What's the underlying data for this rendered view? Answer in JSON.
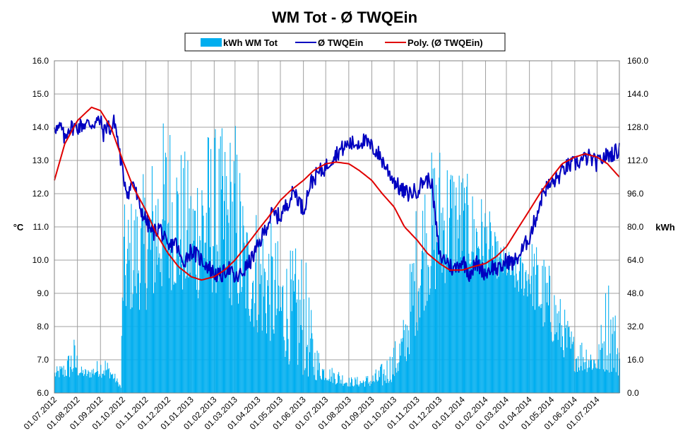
{
  "chart_data": {
    "type": "bar+line",
    "title": "WM Tot - Ø TWQEin",
    "y_left_label": "°C",
    "y_right_label": "kWh",
    "y_left_range": [
      6.0,
      16.0
    ],
    "y_right_range": [
      0.0,
      160.0
    ],
    "y_left_ticks": [
      "6.0",
      "7.0",
      "8.0",
      "9.0",
      "10.0",
      "11.0",
      "12.0",
      "13.0",
      "14.0",
      "15.0",
      "16.0"
    ],
    "y_right_ticks": [
      "0.0",
      "16.0",
      "32.0",
      "48.0",
      "64.0",
      "80.0",
      "96.0",
      "112.0",
      "128.0",
      "144.0",
      "160.0"
    ],
    "x_range": [
      "2012-07-01",
      "2014-07-31"
    ],
    "x_tick_labels": [
      "01.07.2012",
      "01.08.2012",
      "01.09.2012",
      "01.10.2012",
      "01.11.2012",
      "01.12.2012",
      "01.01.2013",
      "01.02.2013",
      "01.03.2013",
      "01.04.2013",
      "01.05.2013",
      "01.06.2013",
      "01.07.2013",
      "01.08.2013",
      "01.09.2013",
      "01.10.2013",
      "01.11.2013",
      "01.12.2013",
      "01.01.2014",
      "01.02.2014",
      "01.03.2014",
      "01.04.2014",
      "01.05.2014",
      "01.06.2014",
      "01.07.2014"
    ],
    "grid": true,
    "legend_position": "top-center",
    "series": [
      {
        "name": "kWh WM Tot",
        "kind": "bar",
        "axis": "right",
        "color": "#00aeef",
        "envelope_dates": [
          "2012-07-01",
          "2012-07-15",
          "2012-07-27",
          "2012-08-05",
          "2012-08-15",
          "2012-08-27",
          "2012-09-05",
          "2012-09-15",
          "2012-09-28",
          "2012-10-01",
          "2012-10-15",
          "2012-11-01",
          "2012-11-15",
          "2012-12-01",
          "2012-12-15",
          "2013-01-01",
          "2013-01-15",
          "2013-02-01",
          "2013-02-15",
          "2013-03-01",
          "2013-03-15",
          "2013-04-01",
          "2013-04-15",
          "2013-05-01",
          "2013-05-15",
          "2013-06-01",
          "2013-06-15",
          "2013-07-01",
          "2013-07-15",
          "2013-08-01",
          "2013-08-15",
          "2013-09-01",
          "2013-09-15",
          "2013-10-01",
          "2013-10-15",
          "2013-11-01",
          "2013-11-15",
          "2013-12-01",
          "2013-12-15",
          "2014-01-01",
          "2014-01-15",
          "2014-02-01",
          "2014-02-15",
          "2014-03-01",
          "2014-03-15",
          "2014-04-01",
          "2014-04-15",
          "2014-05-01",
          "2014-05-15",
          "2014-06-01",
          "2014-06-15",
          "2014-07-01",
          "2014-07-15",
          "2014-07-31"
        ],
        "envelope_peak": [
          12,
          16,
          28,
          13,
          12,
          16,
          20,
          13,
          4,
          90,
          98,
          108,
          125,
          140,
          125,
          110,
          132,
          130,
          128,
          135,
          90,
          95,
          85,
          72,
          70,
          73,
          28,
          13,
          13,
          8,
          8,
          10,
          15,
          25,
          40,
          100,
          115,
          125,
          120,
          110,
          100,
          95,
          75,
          70,
          65,
          76,
          72,
          60,
          44,
          28,
          28,
          20,
          62,
          30
        ],
        "envelope_base": [
          7,
          7,
          7,
          8,
          7,
          8,
          7,
          7,
          2,
          35,
          40,
          40,
          45,
          50,
          48,
          45,
          45,
          48,
          45,
          40,
          35,
          28,
          25,
          20,
          12,
          8,
          6,
          6,
          4,
          3,
          3,
          3,
          3,
          6,
          12,
          30,
          45,
          50,
          55,
          60,
          58,
          58,
          55,
          55,
          48,
          45,
          32,
          24,
          18,
          10,
          10,
          10,
          10,
          8
        ]
      },
      {
        "name": "Ø TWQEin",
        "kind": "line",
        "axis": "left",
        "color": "#0000c0",
        "dates": [
          "2012-07-01",
          "2012-07-05",
          "2012-07-10",
          "2012-07-15",
          "2012-07-20",
          "2012-07-25",
          "2012-08-01",
          "2012-08-10",
          "2012-08-20",
          "2012-09-01",
          "2012-09-05",
          "2012-09-10",
          "2012-09-15",
          "2012-09-20",
          "2012-09-25",
          "2012-10-01",
          "2012-10-08",
          "2012-10-15",
          "2012-10-22",
          "2012-11-01",
          "2012-11-10",
          "2012-11-20",
          "2012-12-01",
          "2012-12-10",
          "2012-12-20",
          "2013-01-01",
          "2013-01-10",
          "2013-01-20",
          "2013-02-01",
          "2013-02-10",
          "2013-02-20",
          "2013-03-01",
          "2013-03-10",
          "2013-03-20",
          "2013-04-01",
          "2013-04-10",
          "2013-04-20",
          "2013-05-01",
          "2013-05-10",
          "2013-05-20",
          "2013-06-01",
          "2013-06-10",
          "2013-06-20",
          "2013-07-01",
          "2013-07-10",
          "2013-07-20",
          "2013-08-01",
          "2013-08-10",
          "2013-08-20",
          "2013-09-01",
          "2013-09-10",
          "2013-09-20",
          "2013-10-01",
          "2013-10-10",
          "2013-10-20",
          "2013-11-01",
          "2013-11-10",
          "2013-11-20",
          "2013-12-01",
          "2013-12-10",
          "2013-12-20",
          "2014-01-01",
          "2014-01-10",
          "2014-01-20",
          "2014-02-01",
          "2014-02-10",
          "2014-02-20",
          "2014-03-01",
          "2014-03-10",
          "2014-03-20",
          "2014-04-01",
          "2014-04-10",
          "2014-04-20",
          "2014-05-01",
          "2014-05-10",
          "2014-05-20",
          "2014-06-01",
          "2014-06-10",
          "2014-06-20",
          "2014-07-01",
          "2014-07-10",
          "2014-07-20",
          "2014-07-31"
        ],
        "values": [
          14.1,
          13.9,
          14.0,
          13.6,
          14.0,
          14.0,
          14.0,
          14.1,
          14.1,
          14.2,
          13.8,
          14.1,
          13.9,
          14.2,
          13.5,
          12.6,
          12.0,
          12.4,
          11.7,
          11.2,
          10.8,
          11.0,
          10.3,
          10.6,
          9.9,
          10.3,
          10.1,
          9.9,
          9.6,
          9.5,
          9.8,
          9.4,
          9.6,
          9.9,
          10.4,
          10.9,
          11.4,
          11.3,
          11.7,
          12.1,
          11.5,
          12.3,
          12.6,
          12.8,
          13.1,
          13.3,
          13.5,
          13.5,
          13.6,
          13.4,
          13.2,
          12.8,
          12.4,
          12.1,
          12.0,
          12.1,
          12.4,
          12.4,
          10.1,
          10.0,
          9.7,
          10.0,
          9.6,
          9.9,
          9.6,
          9.8,
          9.7,
          10.0,
          9.9,
          10.2,
          10.7,
          11.3,
          12.1,
          12.3,
          12.5,
          12.8,
          12.9,
          13.0,
          13.1,
          12.9,
          13.1,
          13.2,
          13.3
        ]
      },
      {
        "name": "Poly. (Ø TWQEin)",
        "kind": "line",
        "axis": "left",
        "color": "#e00000",
        "dates": [
          "2012-07-01",
          "2012-07-15",
          "2012-08-01",
          "2012-08-20",
          "2012-09-01",
          "2012-09-15",
          "2012-10-01",
          "2012-10-15",
          "2012-11-01",
          "2012-11-15",
          "2012-12-01",
          "2012-12-15",
          "2013-01-01",
          "2013-01-15",
          "2013-02-01",
          "2013-02-15",
          "2013-03-01",
          "2013-03-15",
          "2013-04-01",
          "2013-04-15",
          "2013-05-01",
          "2013-05-15",
          "2013-06-01",
          "2013-06-15",
          "2013-07-01",
          "2013-07-15",
          "2013-08-01",
          "2013-08-15",
          "2013-09-01",
          "2013-09-15",
          "2013-10-01",
          "2013-10-15",
          "2013-11-01",
          "2013-11-15",
          "2013-12-01",
          "2013-12-15",
          "2014-01-01",
          "2014-01-15",
          "2014-02-01",
          "2014-02-15",
          "2014-03-01",
          "2014-03-15",
          "2014-04-01",
          "2014-04-15",
          "2014-05-01",
          "2014-05-15",
          "2014-06-01",
          "2014-06-15",
          "2014-07-01",
          "2014-07-15",
          "2014-07-31"
        ],
        "values": [
          12.4,
          13.5,
          14.2,
          14.6,
          14.5,
          14.0,
          13.0,
          12.2,
          11.5,
          10.8,
          10.2,
          9.8,
          9.5,
          9.4,
          9.5,
          9.7,
          10.0,
          10.4,
          10.9,
          11.3,
          11.8,
          12.1,
          12.4,
          12.7,
          12.9,
          12.95,
          12.9,
          12.7,
          12.4,
          12.0,
          11.6,
          11.0,
          10.6,
          10.2,
          9.9,
          9.7,
          9.7,
          9.8,
          9.9,
          10.1,
          10.4,
          10.9,
          11.5,
          12.0,
          12.5,
          12.9,
          13.1,
          13.2,
          13.1,
          12.9,
          12.5
        ]
      }
    ]
  }
}
